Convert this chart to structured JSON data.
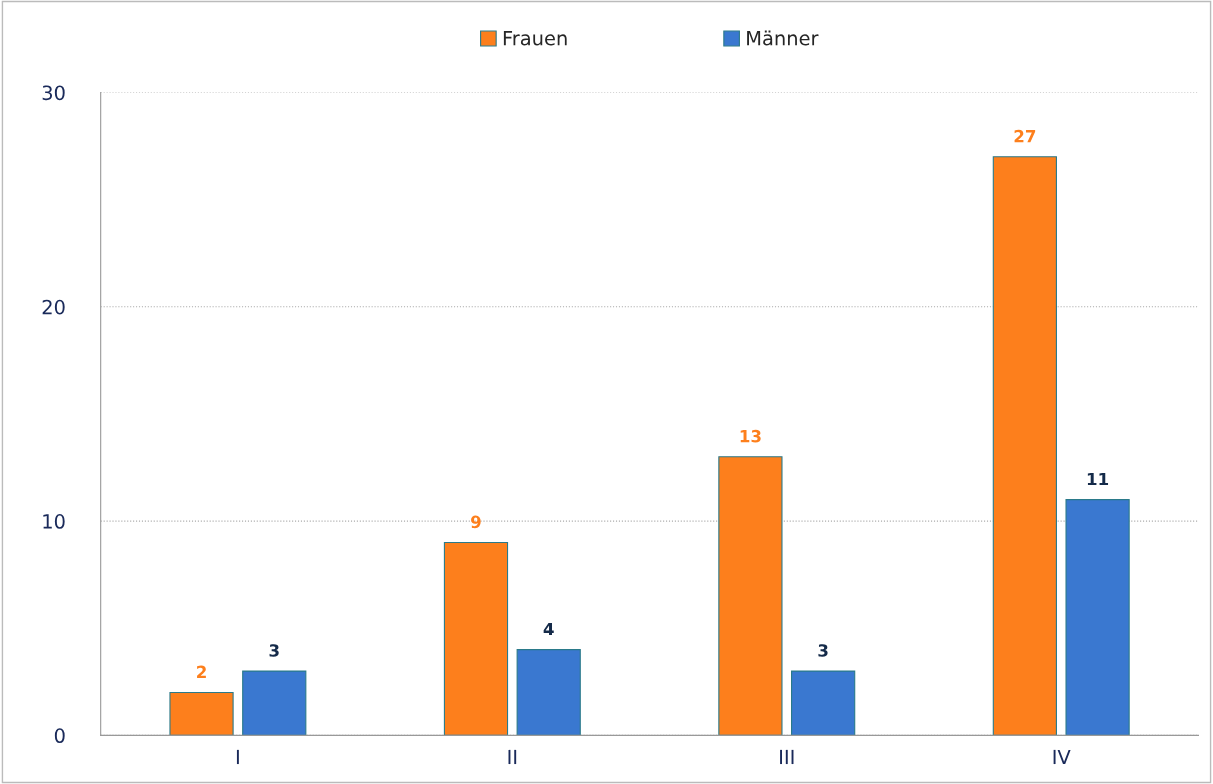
{
  "chart_data": {
    "type": "bar",
    "categories": [
      "I",
      "II",
      "III",
      "IV"
    ],
    "series": [
      {
        "name": "Frauen",
        "color": "#fd7f1c",
        "values": [
          2,
          9,
          13,
          27
        ]
      },
      {
        "name": "Männer",
        "color": "#3a78d0",
        "values": [
          3,
          4,
          3,
          11
        ]
      }
    ],
    "ylim": [
      0,
      30
    ],
    "yticks": [
      0,
      10,
      20,
      30
    ],
    "grid": "y",
    "legend": "top",
    "data_labels": true
  }
}
